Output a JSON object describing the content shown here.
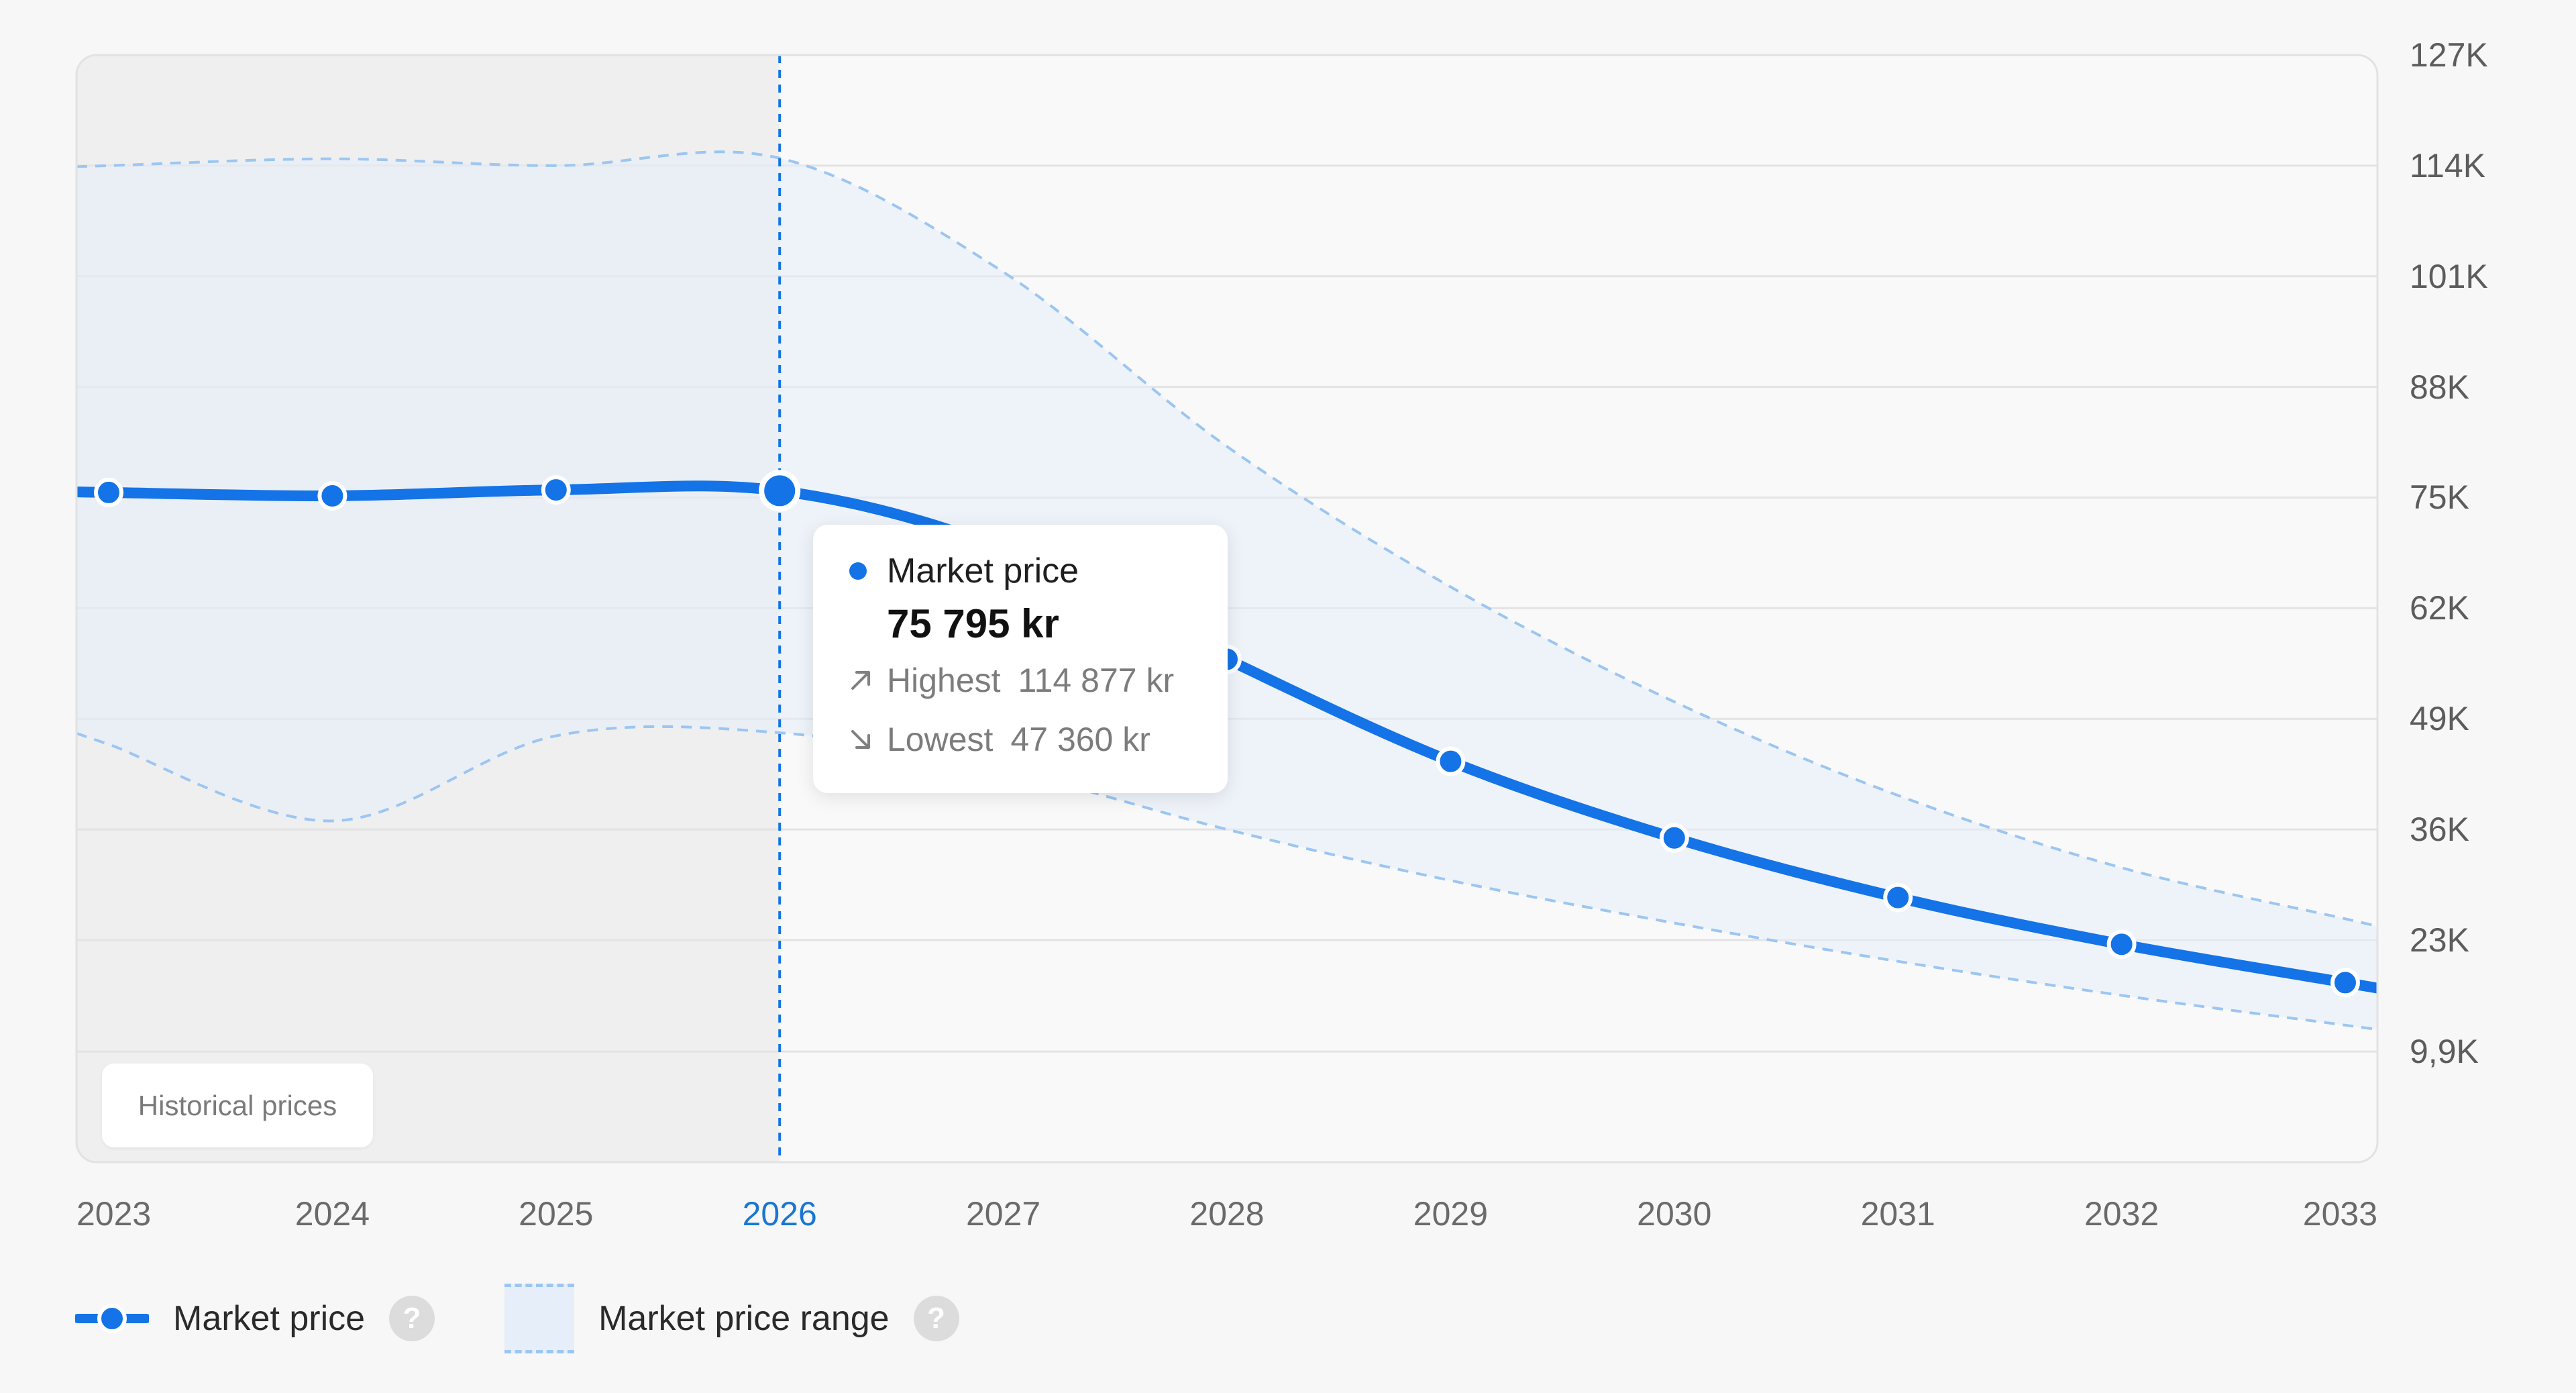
{
  "chart_data": {
    "type": "line",
    "x": [
      "2023",
      "2024",
      "2025",
      "2026",
      "2027",
      "2028",
      "2029",
      "2030",
      "2031",
      "2032",
      "2033"
    ],
    "series": [
      {
        "name": "Market price",
        "values": [
          75600,
          75200,
          75900,
          75795,
          69000,
          56000,
          44000,
          35000,
          28000,
          22500,
          18000
        ]
      },
      {
        "name": "Market price range",
        "upper": [
          114000,
          114800,
          114000,
          114877,
          101500,
          81000,
          64500,
          51000,
          40000,
          31500,
          25500
        ],
        "lower": [
          46000,
          37000,
          47000,
          47360,
          43000,
          36000,
          30000,
          25000,
          20500,
          16500,
          13000
        ]
      }
    ],
    "y_ticks": [
      "127K",
      "114K",
      "101K",
      "88K",
      "75K",
      "62K",
      "49K",
      "36K",
      "23K",
      "9,9K"
    ],
    "ylim": [
      -3100,
      127000
    ],
    "historical_until": "2026",
    "highlight_x": "2026",
    "grid": true,
    "legend": "bottom-left",
    "colors": {
      "line": "#1473e6",
      "band": "#e6eef9",
      "band_edge": "#9cc6f2",
      "history": "#e8e8e8"
    }
  },
  "historical_label": "Historical prices",
  "tooltip": {
    "series_label": "Market price",
    "value": "75 795 kr",
    "highest_label": "Highest",
    "highest_value": "114 877 kr",
    "lowest_label": "Lowest",
    "lowest_value": "47 360 kr"
  },
  "legend": {
    "market_price": "Market price",
    "market_price_range": "Market price range",
    "help": "?"
  },
  "icons": {
    "up": "arrow-up-right-icon",
    "down": "arrow-down-right-icon",
    "help": "question-mark-icon"
  }
}
